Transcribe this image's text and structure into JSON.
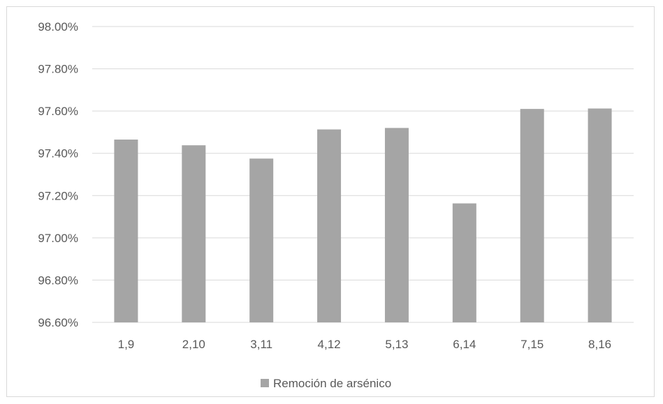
{
  "chart_data": {
    "type": "bar",
    "categories": [
      "1,9",
      "2,10",
      "3,11",
      "4,12",
      "5,13",
      "6,14",
      "7,15",
      "8,16"
    ],
    "series": [
      {
        "name": "Remoción de arsénico",
        "values": [
          97.465,
          97.438,
          97.375,
          97.513,
          97.52,
          97.163,
          97.61,
          97.612
        ],
        "color": "#a5a5a5"
      }
    ],
    "y_ticks": [
      "96.60%",
      "96.80%",
      "97.00%",
      "97.20%",
      "97.40%",
      "97.60%",
      "97.80%",
      "98.00%"
    ],
    "ylim": [
      96.6,
      98.0
    ],
    "y_unit": "%",
    "grid": true,
    "legend_position": "bottom",
    "colors": {
      "gridline": "#d9d9d9",
      "text": "#595959",
      "bar": "#a5a5a5"
    }
  }
}
